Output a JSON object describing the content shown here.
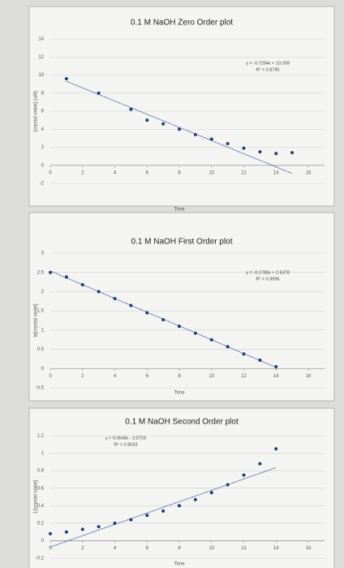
{
  "chart_data": [
    {
      "type": "scatter",
      "title": "0.1 M NaOH Zero Order plot",
      "x_label": "Time",
      "y_label": "[crystal violet] (uM)",
      "equation": "y = -0.7294x + 10.039",
      "r_squared": "R² = 0.8795",
      "trendline": {
        "slope": -0.7294,
        "intercept": 10.039
      },
      "xlim": [
        0,
        16
      ],
      "xticks": [
        0,
        2,
        4,
        6,
        8,
        10,
        12,
        14,
        16
      ],
      "ylim": [
        -2,
        14
      ],
      "yticks": [
        -2,
        0,
        2,
        4,
        6,
        8,
        10,
        12,
        14
      ],
      "grid": true,
      "series": [
        {
          "color": "#1f3d7a",
          "x": [
            1,
            3,
            5,
            6,
            7,
            8,
            9,
            10,
            11,
            12,
            13,
            14,
            15
          ],
          "values": [
            9.6,
            8.0,
            6.2,
            5.0,
            4.6,
            4.0,
            3.4,
            2.9,
            2.4,
            1.9,
            1.5,
            1.3,
            1.4
          ]
        }
      ]
    },
    {
      "type": "scatter",
      "title": "0.1 M NaOH First Order plot",
      "x_label": "Time",
      "y_label": "ln[crystal violet]",
      "equation": "y = -0.1788x + 2.5378",
      "r_squared": "R² = 0.9996",
      "trendline": {
        "slope": -0.1788,
        "intercept": 2.5378
      },
      "xlim": [
        0,
        16
      ],
      "xticks": [
        0,
        2,
        4,
        6,
        8,
        10,
        12,
        14,
        16
      ],
      "ylim": [
        -0.5,
        3
      ],
      "yticks": [
        -0.5,
        0,
        0.5,
        1,
        1.5,
        2,
        2.5,
        3
      ],
      "grid": true,
      "series": [
        {
          "color": "#1f3d7a",
          "x": [
            0,
            1,
            2,
            3,
            4,
            5,
            6,
            7,
            8,
            9,
            10,
            11,
            12,
            13,
            14
          ],
          "values": [
            2.5,
            2.38,
            2.18,
            2.0,
            1.82,
            1.64,
            1.45,
            1.27,
            1.1,
            0.92,
            0.75,
            0.57,
            0.38,
            0.22,
            0.05
          ]
        }
      ]
    },
    {
      "type": "scatter",
      "title": "0.1 M NaOH Second Order plot",
      "x_label": "Time",
      "y_label": "1/[crystal violet]",
      "equation": "y = 0.0648x - 0.0716",
      "r_squared": "R² = 0.9033",
      "trendline": {
        "slope": 0.0648,
        "intercept": -0.0716
      },
      "xlim": [
        0,
        16
      ],
      "xticks": [
        0,
        2,
        4,
        6,
        8,
        10,
        12,
        14,
        16
      ],
      "ylim": [
        -0.2,
        1.2
      ],
      "yticks": [
        -0.2,
        0,
        0.2,
        0.4,
        0.6,
        0.8,
        1,
        1.2
      ],
      "grid": true,
      "series": [
        {
          "color": "#1f3d7a",
          "x": [
            0,
            1,
            2,
            3,
            4,
            5,
            6,
            7,
            8,
            9,
            10,
            11,
            12,
            13,
            14
          ],
          "values": [
            0.08,
            0.1,
            0.13,
            0.16,
            0.2,
            0.24,
            0.29,
            0.34,
            0.4,
            0.47,
            0.55,
            0.64,
            0.75,
            0.88,
            1.05
          ]
        }
      ]
    }
  ]
}
